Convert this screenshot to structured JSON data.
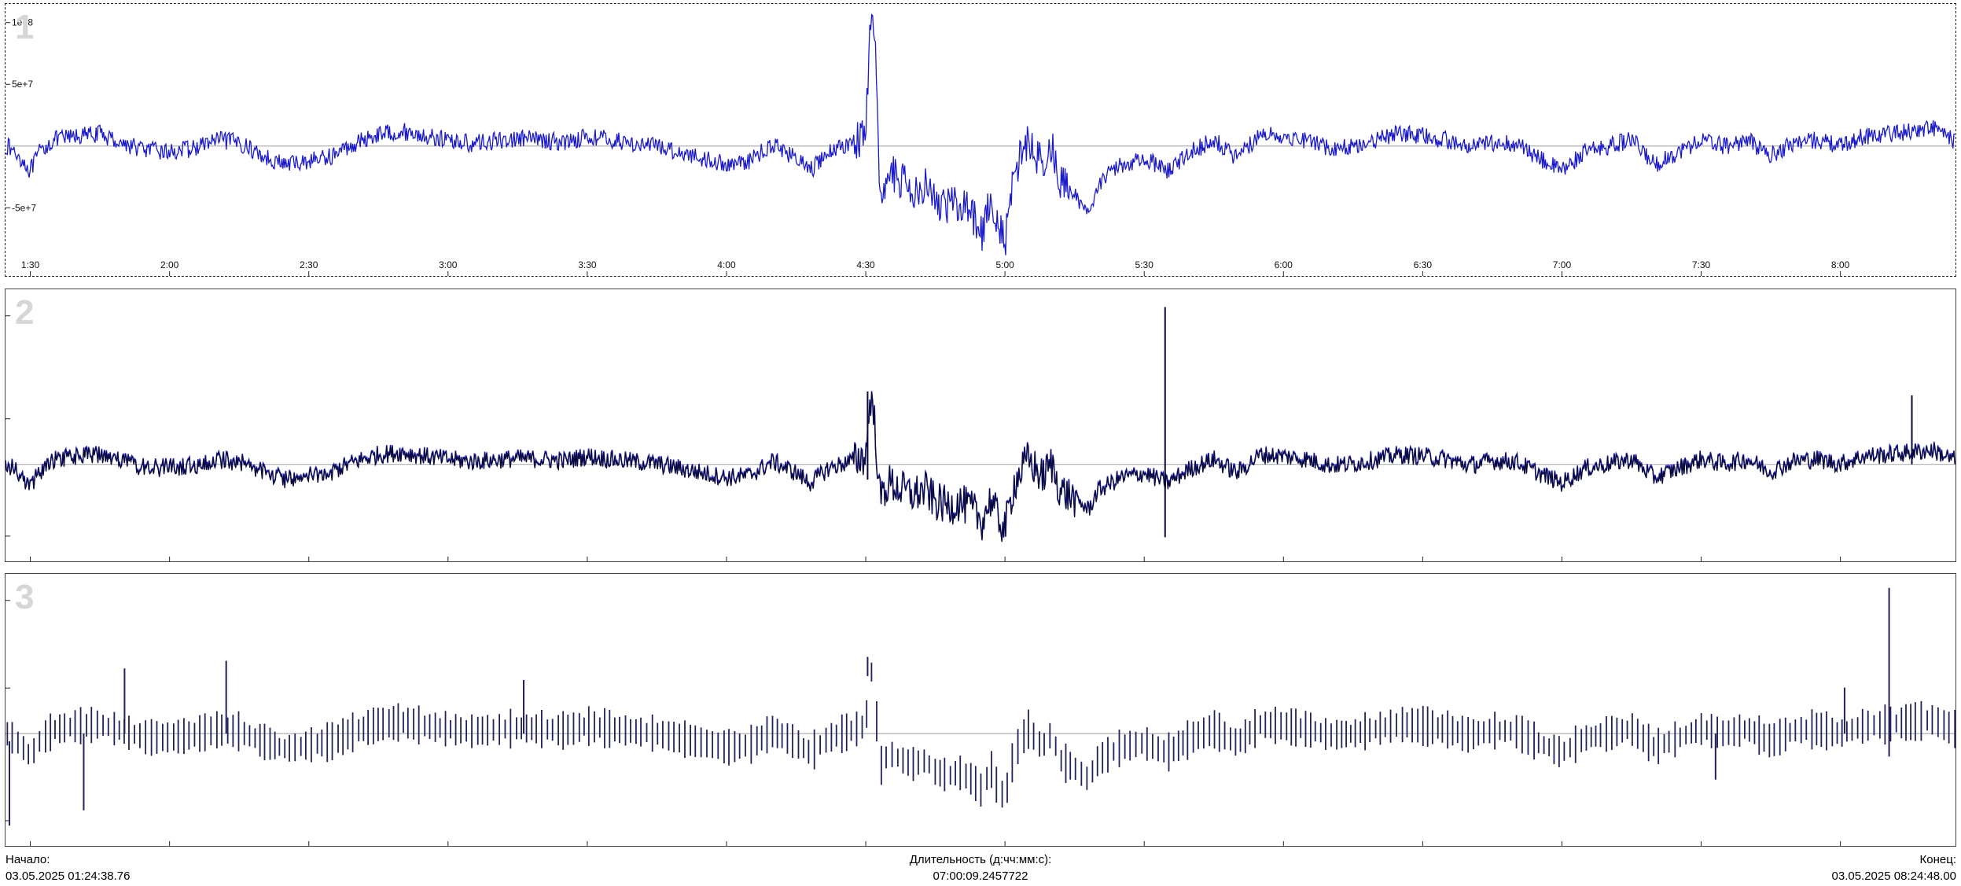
{
  "chart_data": [
    {
      "type": "line",
      "panel_number": "1",
      "selected": true,
      "color": "#1a1acc",
      "y_ticks": [
        {
          "value": 100000000,
          "label": "1e+8"
        },
        {
          "value": 50000000,
          "label": "5e+7"
        },
        {
          "value": -50000000,
          "label": "-5e+7"
        }
      ],
      "ylim": [
        -95000000,
        110000000
      ],
      "x_ticks": [
        {
          "t": 90,
          "label": "1:30"
        },
        {
          "t": 120,
          "label": "2:00"
        },
        {
          "t": 150,
          "label": "2:30"
        },
        {
          "t": 180,
          "label": "3:00"
        },
        {
          "t": 210,
          "label": "3:30"
        },
        {
          "t": 240,
          "label": "4:00"
        },
        {
          "t": 270,
          "label": "4:30"
        },
        {
          "t": 300,
          "label": "5:00"
        },
        {
          "t": 330,
          "label": "5:30"
        },
        {
          "t": 360,
          "label": "6:00"
        },
        {
          "t": 390,
          "label": "6:30"
        },
        {
          "t": 420,
          "label": "7:00"
        },
        {
          "t": 450,
          "label": "7:30"
        },
        {
          "t": 480,
          "label": "8:00"
        }
      ],
      "xlim": [
        84.65,
        504.8
      ],
      "x": [
        85,
        88,
        90,
        92,
        95,
        100,
        105,
        110,
        115,
        120,
        125,
        130,
        135,
        140,
        145,
        150,
        155,
        160,
        165,
        170,
        175,
        180,
        185,
        190,
        195,
        200,
        205,
        210,
        215,
        220,
        225,
        230,
        235,
        240,
        245,
        250,
        255,
        258,
        262,
        265,
        268,
        270,
        271,
        272,
        273,
        275,
        278,
        280,
        283,
        285,
        288,
        290,
        293,
        295,
        297,
        298,
        300,
        302,
        305,
        308,
        310,
        312,
        315,
        318,
        320,
        325,
        330,
        335,
        340,
        345,
        350,
        355,
        360,
        365,
        370,
        375,
        380,
        385,
        390,
        395,
        400,
        405,
        410,
        415,
        420,
        425,
        430,
        435,
        440,
        445,
        450,
        455,
        460,
        465,
        470,
        475,
        480,
        485,
        490,
        495,
        500,
        504
      ],
      "y": [
        0,
        -10000000,
        -20000000,
        -5000000,
        5000000,
        8000000,
        10000000,
        2000000,
        -3000000,
        -5000000,
        -2000000,
        5000000,
        3000000,
        -8000000,
        -15000000,
        -12000000,
        -8000000,
        2000000,
        10000000,
        12000000,
        8000000,
        5000000,
        2000000,
        4000000,
        6000000,
        5000000,
        3000000,
        8000000,
        5000000,
        2000000,
        0,
        -5000000,
        -10000000,
        -15000000,
        -12000000,
        2000000,
        -10000000,
        -20000000,
        -5000000,
        0,
        5000000,
        8000000,
        100000000,
        80000000,
        -40000000,
        -20000000,
        -30000000,
        -35000000,
        -30000000,
        -45000000,
        -50000000,
        -45000000,
        -55000000,
        -70000000,
        -40000000,
        -60000000,
        -80000000,
        -20000000,
        5000000,
        -15000000,
        0,
        -30000000,
        -40000000,
        -55000000,
        -30000000,
        -15000000,
        -10000000,
        -20000000,
        -5000000,
        5000000,
        -10000000,
        10000000,
        8000000,
        5000000,
        -2000000,
        0,
        5000000,
        10000000,
        8000000,
        5000000,
        -2000000,
        3000000,
        2000000,
        -10000000,
        -20000000,
        -5000000,
        0,
        5000000,
        -15000000,
        -5000000,
        5000000,
        0,
        5000000,
        -8000000,
        3000000,
        5000000,
        0,
        8000000,
        10000000,
        12000000,
        15000000,
        5000000
      ],
      "baseline": 0
    },
    {
      "type": "line",
      "panel_number": "2",
      "selected": false,
      "color": "#0a0a3a",
      "color_secondary": "#2a2acc",
      "xlim": [
        84.65,
        504.8
      ],
      "ylim": [
        -1.1,
        2.2
      ],
      "x": [
        85,
        88,
        90,
        92,
        95,
        100,
        105,
        110,
        115,
        120,
        125,
        130,
        135,
        140,
        145,
        150,
        155,
        160,
        165,
        170,
        175,
        180,
        185,
        190,
        195,
        200,
        205,
        210,
        215,
        220,
        225,
        230,
        235,
        240,
        245,
        250,
        255,
        258,
        262,
        265,
        268,
        270,
        271,
        272,
        273,
        275,
        278,
        280,
        283,
        285,
        288,
        290,
        293,
        295,
        297,
        298,
        300,
        302,
        305,
        308,
        310,
        312,
        315,
        318,
        320,
        325,
        330,
        335,
        340,
        345,
        350,
        355,
        360,
        365,
        370,
        375,
        380,
        385,
        390,
        395,
        400,
        405,
        410,
        415,
        420,
        425,
        430,
        435,
        440,
        445,
        450,
        455,
        460,
        465,
        470,
        475,
        480,
        485,
        490,
        495,
        500,
        504
      ],
      "y": [
        0,
        -0.15,
        -0.3,
        -0.1,
        0.05,
        0.1,
        0.12,
        0.03,
        -0.05,
        -0.05,
        -0.02,
        0.05,
        0.03,
        -0.1,
        -0.2,
        -0.15,
        -0.1,
        0.03,
        0.12,
        0.15,
        0.1,
        0.06,
        0.03,
        0.05,
        0.07,
        0.06,
        0.04,
        0.1,
        0.06,
        0.03,
        0,
        -0.06,
        -0.12,
        -0.18,
        -0.15,
        0.03,
        -0.12,
        -0.25,
        -0.06,
        0,
        0.06,
        0.1,
        0.9,
        0.5,
        -0.45,
        -0.25,
        -0.35,
        -0.4,
        -0.35,
        -0.5,
        -0.55,
        -0.5,
        -0.6,
        -0.75,
        -0.45,
        -0.65,
        -0.85,
        -0.25,
        0.06,
        -0.18,
        0,
        -0.35,
        -0.45,
        -0.6,
        -0.35,
        -0.18,
        -0.12,
        -0.25,
        -0.06,
        0.06,
        -0.12,
        0.12,
        0.1,
        0.06,
        -0.02,
        0,
        0.06,
        0.12,
        0.1,
        0.06,
        -0.02,
        0.04,
        0.03,
        -0.12,
        -0.25,
        -0.06,
        0,
        0.06,
        -0.18,
        -0.06,
        0.06,
        0,
        0.06,
        -0.1,
        0.04,
        0.06,
        0,
        0.1,
        0.12,
        0.15,
        0.18,
        0.06
      ],
      "spikes": [
        {
          "x": 334.5,
          "low": -0.95,
          "high": 2.05
        },
        {
          "x": 495.4,
          "low": 0.0,
          "high": 0.9
        },
        {
          "x": 270.4,
          "low": -0.2,
          "high": 0.95
        }
      ],
      "baseline": 0
    },
    {
      "type": "bar",
      "panel_number": "3",
      "selected": false,
      "color": "#22225a",
      "xlim": [
        84.65,
        504.8
      ],
      "ylim": [
        -1.3,
        2.0
      ],
      "bar_spacing_min": 1.13,
      "x": [
        85,
        88,
        90,
        92,
        95,
        100,
        105,
        110,
        115,
        120,
        125,
        130,
        135,
        140,
        145,
        150,
        155,
        160,
        165,
        170,
        175,
        180,
        185,
        190,
        195,
        200,
        205,
        210,
        215,
        220,
        225,
        230,
        235,
        240,
        245,
        250,
        255,
        258,
        262,
        265,
        268,
        270,
        271,
        272,
        273,
        275,
        278,
        280,
        283,
        285,
        288,
        290,
        293,
        295,
        297,
        298,
        300,
        302,
        305,
        308,
        310,
        312,
        315,
        318,
        320,
        325,
        330,
        335,
        340,
        345,
        350,
        355,
        360,
        365,
        370,
        375,
        380,
        385,
        390,
        395,
        400,
        405,
        410,
        415,
        420,
        425,
        430,
        435,
        440,
        445,
        450,
        455,
        460,
        465,
        470,
        475,
        480,
        485,
        490,
        495,
        500,
        504
      ],
      "y": [
        0,
        -0.15,
        -0.3,
        -0.1,
        0.05,
        0.1,
        0.12,
        0.03,
        -0.05,
        -0.05,
        -0.02,
        0.05,
        0.03,
        -0.1,
        -0.2,
        -0.15,
        -0.1,
        0.03,
        0.12,
        0.15,
        0.1,
        0.06,
        0.03,
        0.05,
        0.07,
        0.06,
        0.04,
        0.1,
        0.06,
        0.03,
        0,
        -0.06,
        -0.12,
        -0.18,
        -0.15,
        0.03,
        -0.12,
        -0.25,
        -0.06,
        0,
        0.06,
        0.1,
        0.9,
        0.5,
        -0.45,
        -0.25,
        -0.35,
        -0.4,
        -0.35,
        -0.5,
        -0.55,
        -0.5,
        -0.6,
        -0.75,
        -0.45,
        -0.65,
        -0.85,
        -0.25,
        0.06,
        -0.18,
        0,
        -0.35,
        -0.45,
        -0.6,
        -0.35,
        -0.18,
        -0.12,
        -0.25,
        -0.06,
        0.06,
        -0.12,
        0.12,
        0.1,
        0.06,
        -0.02,
        0,
        0.06,
        0.12,
        0.1,
        0.06,
        -0.02,
        0.04,
        0.03,
        -0.12,
        -0.25,
        -0.06,
        0,
        0.06,
        -0.18,
        -0.06,
        0.06,
        0,
        0.06,
        -0.1,
        0.04,
        0.06,
        0,
        0.1,
        0.12,
        0.15,
        0.18,
        0.06
      ],
      "spikes": [
        {
          "x": 85.5,
          "low": -1.2,
          "high": -0.1
        },
        {
          "x": 101.5,
          "low": -1.0,
          "high": 0.0
        },
        {
          "x": 110.3,
          "low": 0.0,
          "high": 0.85
        },
        {
          "x": 132.2,
          "low": 0.0,
          "high": 0.95
        },
        {
          "x": 196.3,
          "low": 0.0,
          "high": 0.7
        },
        {
          "x": 270.4,
          "low": 0.75,
          "high": 1.0
        },
        {
          "x": 490.5,
          "low": -0.3,
          "high": 1.9
        },
        {
          "x": 453.1,
          "low": -0.6,
          "high": 0.0
        },
        {
          "x": 480.9,
          "low": 0.0,
          "high": 0.6
        }
      ],
      "baseline": 0
    }
  ],
  "footer": {
    "start_label": "Начало:",
    "start_value": "03.05.2025 01:24:38.76",
    "duration_label": "Длительность (д:чч:мм:с):",
    "duration_value": "07:00:09.2457722",
    "end_label": "Конец:",
    "end_value": "03.05.2025 08:24:48.00"
  },
  "colors": {
    "panel_number": "#d6d6d6",
    "baseline": "#b0b0b0",
    "axis_ticks": "#222222"
  }
}
